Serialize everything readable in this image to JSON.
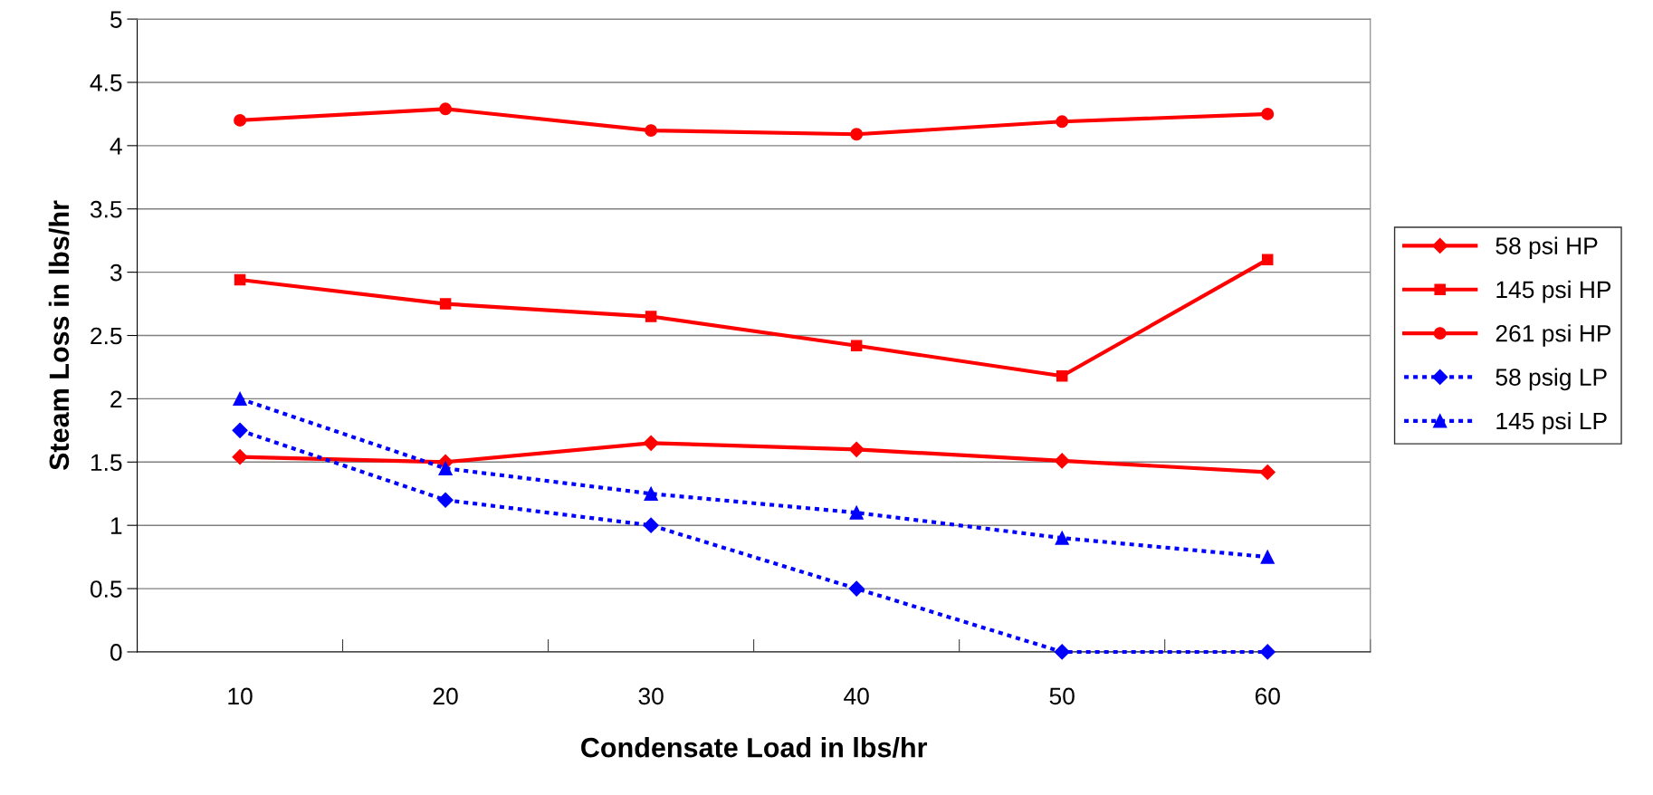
{
  "chart_data": {
    "type": "line",
    "xlabel": "Condensate Load in lbs/hr",
    "ylabel": "Steam Loss in lbs/hr",
    "categories": [
      "10",
      "20",
      "30",
      "40",
      "50",
      "60"
    ],
    "series": [
      {
        "name": "58 psi HP",
        "color": "#ff0000",
        "marker": "diamond",
        "line_style": "solid",
        "values": [
          1.54,
          1.5,
          1.65,
          1.6,
          1.51,
          1.42
        ]
      },
      {
        "name": "145 psi HP",
        "color": "#ff0000",
        "marker": "square",
        "line_style": "solid",
        "values": [
          2.94,
          2.75,
          2.65,
          2.42,
          2.18,
          3.1
        ]
      },
      {
        "name": "261 psi HP",
        "color": "#ff0000",
        "marker": "circle",
        "line_style": "solid",
        "values": [
          4.2,
          4.29,
          4.12,
          4.09,
          4.19,
          4.25
        ]
      },
      {
        "name": "58 psig LP",
        "color": "#0000ff",
        "marker": "diamond",
        "line_style": "dotted",
        "values": [
          1.75,
          1.2,
          1.0,
          0.5,
          0,
          0
        ]
      },
      {
        "name": "145 psi LP",
        "color": "#0000ff",
        "marker": "triangle",
        "line_style": "dotted",
        "values": [
          2.0,
          1.45,
          1.25,
          1.1,
          0.9,
          0.75
        ]
      }
    ],
    "ylim": [
      0,
      5
    ],
    "yticks": [
      0,
      0.5,
      1,
      1.5,
      2,
      2.5,
      3,
      3.5,
      4,
      4.5,
      5
    ],
    "grid": "y",
    "legend": "right"
  }
}
